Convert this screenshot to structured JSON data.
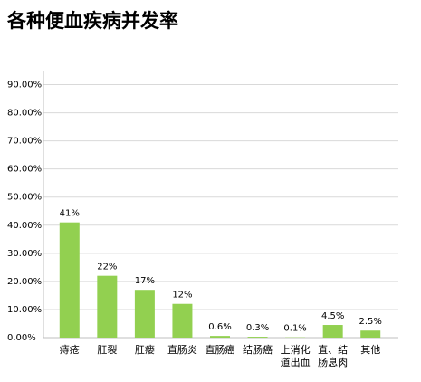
{
  "chart_data": {
    "type": "bar",
    "title": "各种便血疾病并发率",
    "categories": [
      "痔疮",
      "肛裂",
      "肛瘘",
      "直肠炎",
      "直肠癌",
      "结肠癌",
      "上消化道出血",
      "直、结肠息肉",
      "其他"
    ],
    "values": [
      41,
      22,
      17,
      12,
      0.6,
      0.3,
      0.1,
      4.5,
      2.5
    ],
    "value_labels": [
      "41%",
      "22%",
      "17%",
      "12%",
      "0.6%",
      "0.3%",
      "0.1%",
      "4.5%",
      "2.5%"
    ],
    "color": "#92d050",
    "ylim": [
      0,
      95
    ],
    "yticks": [
      {
        "value": 0,
        "label": "0.00%"
      },
      {
        "value": 10,
        "label": "10.00%"
      },
      {
        "value": 20,
        "label": "20.00%"
      },
      {
        "value": 30,
        "label": "30.00%"
      },
      {
        "value": 40,
        "label": "40.00%"
      },
      {
        "value": 50,
        "label": "50.00%"
      },
      {
        "value": 60,
        "label": "60.00%"
      },
      {
        "value": 70,
        "label": "70.00%"
      },
      {
        "value": 80,
        "label": "80.00%"
      },
      {
        "value": 90,
        "label": "90.00%"
      }
    ],
    "grid": true
  }
}
